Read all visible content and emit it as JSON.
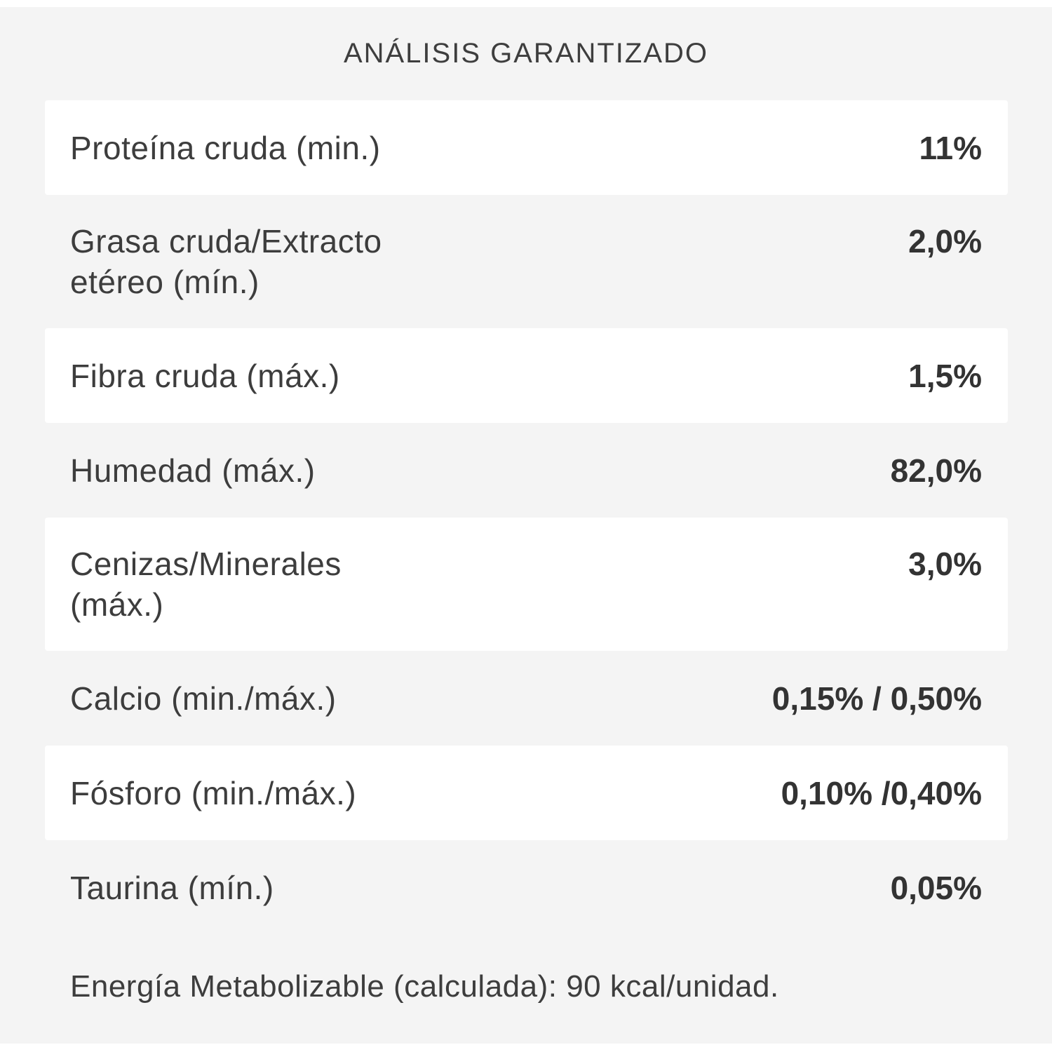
{
  "title": "ANÁLISIS GARANTIZADO",
  "colors": {
    "page_background": "#ffffff",
    "panel_background": "#f4f4f4",
    "card_background": "#ffffff",
    "text": "#3d3d3d"
  },
  "table": {
    "rows": [
      {
        "label": "Proteína cruda (min.)",
        "value": "11%"
      },
      {
        "label": "Grasa cruda/Extracto\netéreo (mín.)",
        "value": "2,0%"
      },
      {
        "label": "Fibra cruda (máx.)",
        "value": "1,5%"
      },
      {
        "label": "Humedad (máx.)",
        "value": "82,0%"
      },
      {
        "label": "Cenizas/Minerales\n(máx.)",
        "value": "3,0%"
      },
      {
        "label": "Calcio (min./máx.)",
        "value": "0,15% / 0,50%"
      },
      {
        "label": "Fósforo (min./máx.)",
        "value": "0,10% /0,40%"
      },
      {
        "label": "Taurina (mín.)",
        "value": "0,05%"
      }
    ]
  },
  "footer": "Energía Metabolizable (calculada): 90 kcal/unidad."
}
